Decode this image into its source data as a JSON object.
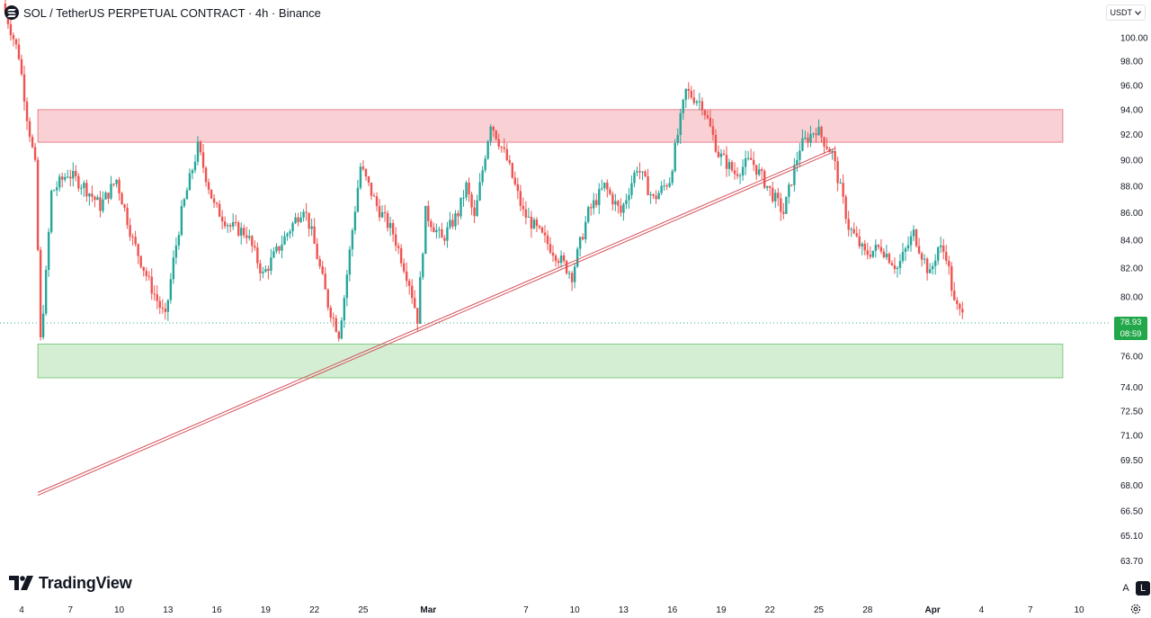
{
  "header": {
    "title": "SOL / TetherUS PERPETUAL CONTRACT · 4h · Binance"
  },
  "currency_selector": {
    "label": "USDT"
  },
  "last_price": {
    "price": "78.93",
    "countdown": "08:59"
  },
  "brand": {
    "name": "TradingView"
  },
  "scale_buttons": {
    "auto": "A",
    "log": "L"
  },
  "colors": {
    "up": "#26a69a",
    "down": "#ef5350",
    "resistance_zone": "#f8c8cc",
    "support_zone": "#cdebcd",
    "trendline": "#d6505a",
    "price_tag": "#22a84a"
  },
  "icons": [
    "solana-icon",
    "chevron-down-icon",
    "tradingview-logo-icon",
    "settings-gear-icon"
  ],
  "chart_data": {
    "type": "candlestick",
    "title": "SOL / TetherUS PERPETUAL CONTRACT · 4h · Binance",
    "interval": "4h",
    "y_scale": "log",
    "ylim": [
      62.9,
      103.0
    ],
    "y_ticks": [
      "100.00",
      "98.00",
      "96.00",
      "94.00",
      "92.00",
      "90.00",
      "88.00",
      "86.00",
      "84.00",
      "82.00",
      "80.00",
      "76.00",
      "74.00",
      "72.50",
      "71.00",
      "69.50",
      "68.00",
      "66.50",
      "65.10",
      "63.70"
    ],
    "x_ticks": [
      "4",
      "7",
      "10",
      "13",
      "16",
      "19",
      "22",
      "25",
      "Mar",
      "7",
      "10",
      "13",
      "16",
      "19",
      "22",
      "25",
      "28",
      "Apr",
      "4",
      "7",
      "10"
    ],
    "x_range": [
      "2025-02-04",
      "2025-04-10"
    ],
    "last_price": 78.93,
    "resistance_zone": {
      "from": "2025-02-05",
      "to": "2025-04-09",
      "low": 91.4,
      "high": 94.0
    },
    "support_zone": {
      "from": "2025-02-05",
      "to": "2025-04-09",
      "low": 74.6,
      "high": 76.8
    },
    "trendline": {
      "start": {
        "date": "2025-02-05",
        "price": 67.5
      },
      "end": {
        "date": "2025-03-26",
        "price": 90.8
      }
    },
    "price_path": [
      [
        "2025-02-03",
        103.0
      ],
      [
        "2025-02-04",
        98.5
      ],
      [
        "2025-02-04T12",
        93.5
      ],
      [
        "2025-02-05",
        89.5
      ],
      [
        "2025-02-05T08",
        77.0
      ],
      [
        "2025-02-05T16",
        81.5
      ],
      [
        "2025-02-06",
        87.5
      ],
      [
        "2025-02-07",
        89.0
      ],
      [
        "2025-02-08",
        88.0
      ],
      [
        "2025-02-09",
        86.5
      ],
      [
        "2025-02-10",
        88.5
      ],
      [
        "2025-02-11",
        84.0
      ],
      [
        "2025-02-12",
        81.0
      ],
      [
        "2025-02-13",
        78.5
      ],
      [
        "2025-02-13T12",
        82.5
      ],
      [
        "2025-02-14",
        86.0
      ],
      [
        "2025-02-15",
        91.0
      ],
      [
        "2025-02-16",
        86.5
      ],
      [
        "2025-02-17",
        85.0
      ],
      [
        "2025-02-18",
        84.5
      ],
      [
        "2025-02-19",
        81.5
      ],
      [
        "2025-02-20",
        83.5
      ],
      [
        "2025-02-21",
        85.5
      ],
      [
        "2025-02-21T12",
        86.5
      ],
      [
        "2025-02-22",
        84.5
      ],
      [
        "2025-02-23",
        79.5
      ],
      [
        "2025-02-23T16",
        77.5
      ],
      [
        "2025-02-24",
        80.0
      ],
      [
        "2025-02-25",
        89.5
      ],
      [
        "2025-02-26",
        86.5
      ],
      [
        "2025-02-27",
        84.5
      ],
      [
        "2025-02-28",
        81.0
      ],
      [
        "2025-02-28T12",
        78.5
      ],
      [
        "2025-03-01",
        86.0
      ],
      [
        "2025-03-02",
        84.0
      ],
      [
        "2025-03-03",
        86.0
      ],
      [
        "2025-03-03T12",
        88.0
      ],
      [
        "2025-03-04",
        85.5
      ],
      [
        "2025-03-05",
        93.0
      ],
      [
        "2025-03-06",
        90.0
      ],
      [
        "2025-03-07",
        86.0
      ],
      [
        "2025-03-08",
        84.5
      ],
      [
        "2025-03-09",
        83.0
      ],
      [
        "2025-03-10",
        81.5
      ],
      [
        "2025-03-11",
        86.0
      ],
      [
        "2025-03-12",
        88.0
      ],
      [
        "2025-03-13",
        86.0
      ],
      [
        "2025-03-14",
        89.5
      ],
      [
        "2025-03-15",
        87.0
      ],
      [
        "2025-03-16",
        88.5
      ],
      [
        "2025-03-17",
        95.5
      ],
      [
        "2025-03-18",
        94.5
      ],
      [
        "2025-03-19",
        90.5
      ],
      [
        "2025-03-20",
        89.0
      ],
      [
        "2025-03-21",
        90.0
      ],
      [
        "2025-03-22",
        88.0
      ],
      [
        "2025-03-23",
        86.0
      ],
      [
        "2025-03-24",
        91.0
      ],
      [
        "2025-03-25",
        92.5
      ],
      [
        "2025-03-26",
        90.5
      ],
      [
        "2025-03-27",
        85.0
      ],
      [
        "2025-03-28",
        83.0
      ],
      [
        "2025-03-29",
        83.5
      ],
      [
        "2025-03-30",
        82.0
      ],
      [
        "2025-03-31",
        84.5
      ],
      [
        "2025-04-01",
        81.5
      ],
      [
        "2025-04-01T12",
        83.5
      ],
      [
        "2025-04-02",
        83.0
      ],
      [
        "2025-04-02T12",
        79.5
      ],
      [
        "2025-04-02T20",
        78.93
      ]
    ]
  }
}
